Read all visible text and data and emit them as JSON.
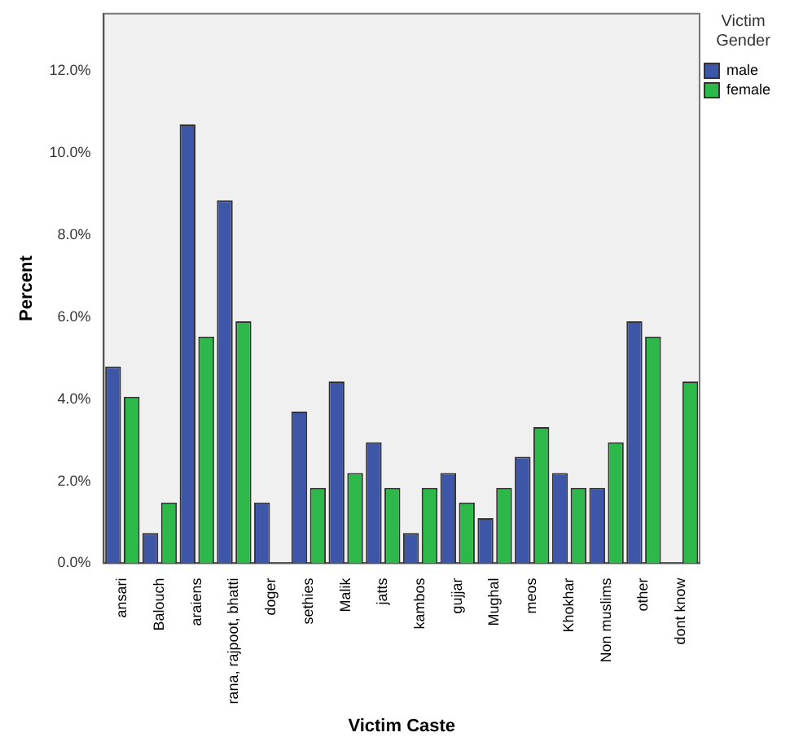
{
  "chart_data": {
    "type": "bar",
    "xlabel": "Victim Caste",
    "ylabel": "Percent",
    "legend_title": "Victim Gender",
    "legend": "top right",
    "grid": false,
    "categories": [
      "ansari",
      "Balouch",
      "araiens",
      "rana, rajpoot, bhatti",
      "doger",
      "sethies",
      "Malik",
      "jatts",
      "kambos",
      "gujjar",
      "Mughal",
      "meos",
      "Khokhar",
      "Non muslims",
      "other",
      "dont know"
    ],
    "series": [
      {
        "name": "male",
        "color": "#3e56a8",
        "values": [
          4.8,
          0.74,
          10.7,
          8.85,
          1.48,
          3.7,
          4.43,
          2.95,
          0.74,
          2.2,
          1.1,
          2.6,
          2.2,
          1.84,
          5.9,
          0
        ]
      },
      {
        "name": "female",
        "color": "#2db84a",
        "values": [
          4.06,
          1.48,
          5.53,
          5.9,
          0,
          1.84,
          2.2,
          1.84,
          1.84,
          1.48,
          1.84,
          3.32,
          1.84,
          2.95,
          5.53,
          4.43
        ]
      }
    ],
    "ylim": [
      0,
      13.4
    ],
    "yticks": [
      {
        "value": 0,
        "label": "0.0%"
      },
      {
        "value": 2,
        "label": "2.0%"
      },
      {
        "value": 4,
        "label": "4.0%"
      },
      {
        "value": 6,
        "label": "6.0%"
      },
      {
        "value": 8,
        "label": "8.0%"
      },
      {
        "value": 10,
        "label": "10.0%"
      },
      {
        "value": 12,
        "label": "12.0%"
      }
    ]
  }
}
